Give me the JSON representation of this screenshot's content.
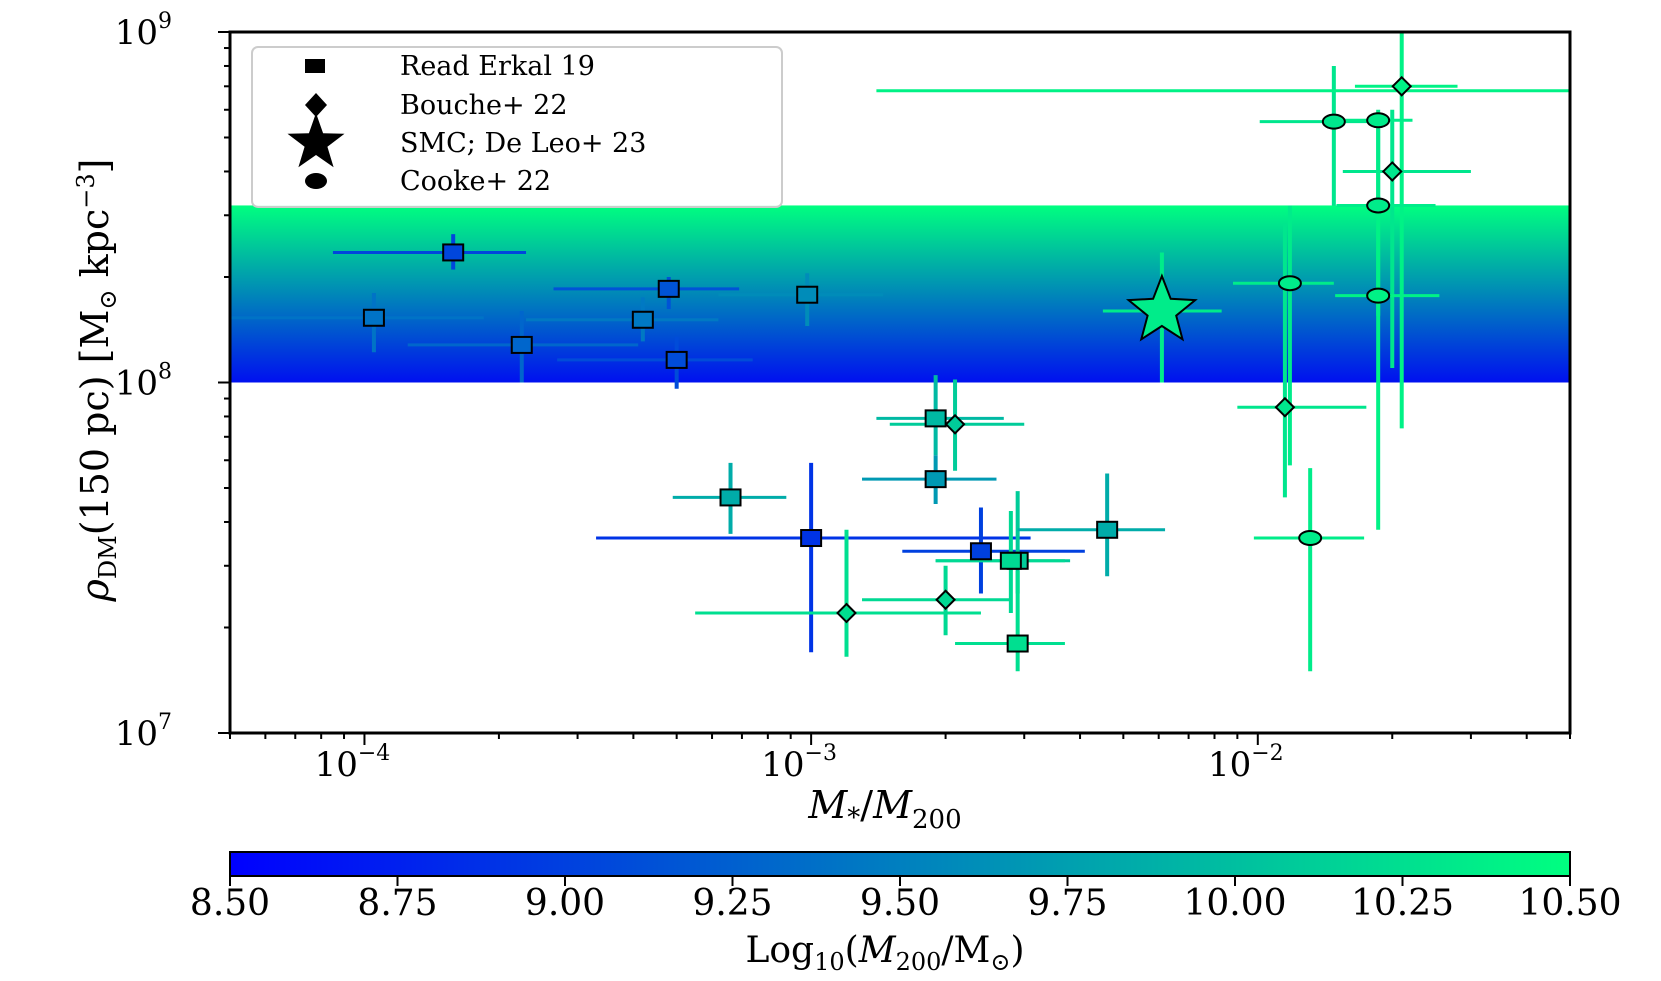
{
  "chart_data": {
    "type": "scatter",
    "title": "",
    "xlabel": "M*/M200",
    "ylabel": "ρDM(150 pc) [M⊙ kpc⁻³]",
    "xscale": "log",
    "yscale": "log",
    "xlim": [
      5e-05,
      0.05
    ],
    "ylim": [
      10000000,
      1000000000
    ],
    "x_ticks": [
      {
        "base": "10",
        "exp": "−4",
        "value": 0.0001
      },
      {
        "base": "10",
        "exp": "−3",
        "value": 0.001
      },
      {
        "base": "10",
        "exp": "−2",
        "value": 0.01
      }
    ],
    "y_ticks": [
      {
        "base": "10",
        "exp": "7",
        "value": 10000000
      },
      {
        "base": "10",
        "exp": "8",
        "value": 100000000
      },
      {
        "base": "10",
        "exp": "9",
        "value": 1000000000
      }
    ],
    "band": {
      "y_low": 100000000,
      "y_high": 320000000,
      "color_bottom": "#0010f0",
      "color_top": "#00ff80"
    },
    "colorbar": {
      "label": "Log10(M200/M⊙)",
      "min": 8.5,
      "max": 10.5,
      "ticks": [
        "8.50",
        "8.75",
        "9.00",
        "9.25",
        "9.50",
        "9.75",
        "10.00",
        "10.25",
        "10.50"
      ],
      "color_low": "#0000ff",
      "color_high": "#00ff80"
    },
    "legend": {
      "position": "top-left",
      "entries": [
        {
          "marker": "square",
          "label": "Read Erkal 19"
        },
        {
          "marker": "diamond",
          "label": "Bouche+ 22"
        },
        {
          "marker": "star",
          "label": "SMC; De Leo+ 23"
        },
        {
          "marker": "circle",
          "label": "Cooke+ 22"
        }
      ]
    },
    "series": [
      {
        "marker": "square",
        "points": [
          {
            "x": 0.000158,
            "y": 235000000,
            "xlo": 8.5e-05,
            "xhi": 0.00023,
            "ylo": 210000000,
            "yhi": 265000000,
            "c": 9.05
          },
          {
            "x": 0.000105,
            "y": 153000000,
            "xlo": 5e-05,
            "xhi": 0.000185,
            "ylo": 122000000,
            "yhi": 180000000,
            "c": 9.4
          },
          {
            "x": 0.000225,
            "y": 128000000,
            "xlo": 0.000125,
            "xhi": 0.00041,
            "ylo": 100000000,
            "yhi": 160000000,
            "c": 9.3
          },
          {
            "x": 0.00048,
            "y": 185000000,
            "xlo": 0.000265,
            "xhi": 0.00069,
            "ylo": 162000000,
            "yhi": 200000000,
            "c": 9.15
          },
          {
            "x": 0.00042,
            "y": 151000000,
            "xlo": 0.00023,
            "xhi": 0.00062,
            "ylo": 131000000,
            "yhi": 175000000,
            "c": 9.45
          },
          {
            "x": 0.0005,
            "y": 116000000,
            "xlo": 0.00027,
            "xhi": 0.00074,
            "ylo": 96000000,
            "yhi": 135000000,
            "c": 9.1
          },
          {
            "x": 0.00098,
            "y": 178000000,
            "xlo": 0.00062,
            "xhi": 0.00145,
            "ylo": 145000000,
            "yhi": 205000000,
            "c": 9.6
          },
          {
            "x": 0.00066,
            "y": 47000000,
            "xlo": 0.00049,
            "xhi": 0.00088,
            "ylo": 37000000,
            "yhi": 59000000,
            "c": 9.85
          },
          {
            "x": 0.001,
            "y": 36000000,
            "xlo": 0.00033,
            "xhi": 0.0031,
            "ylo": 17000000,
            "yhi": 59000000,
            "c": 8.9
          },
          {
            "x": 0.0019,
            "y": 79000000,
            "xlo": 0.0014,
            "xhi": 0.0027,
            "ylo": 62000000,
            "yhi": 105000000,
            "c": 9.95
          },
          {
            "x": 0.0019,
            "y": 53000000,
            "xlo": 0.0013,
            "xhi": 0.0026,
            "ylo": 45000000,
            "yhi": 62000000,
            "c": 9.7
          },
          {
            "x": 0.0024,
            "y": 33000000,
            "xlo": 0.0016,
            "xhi": 0.0041,
            "ylo": 25000000,
            "yhi": 44000000,
            "c": 9.0
          },
          {
            "x": 0.0029,
            "y": 31000000,
            "xlo": 0.0019,
            "xhi": 0.0038,
            "ylo": 25000000,
            "yhi": 49000000,
            "c": 10.1
          },
          {
            "x": 0.0028,
            "y": 31000000,
            "xlo": 0.0019,
            "xhi": 0.0037,
            "ylo": 22000000,
            "yhi": 43000000,
            "c": 10.2
          },
          {
            "x": 0.0029,
            "y": 18000000,
            "xlo": 0.0021,
            "xhi": 0.0037,
            "ylo": 15000000,
            "yhi": 29000000,
            "c": 10.25
          },
          {
            "x": 0.0046,
            "y": 38000000,
            "xlo": 0.0029,
            "xhi": 0.0062,
            "ylo": 28000000,
            "yhi": 55000000,
            "c": 9.85
          }
        ]
      },
      {
        "marker": "diamond",
        "points": [
          {
            "x": 0.0021,
            "y": 76000000,
            "xlo": 0.0015,
            "xhi": 0.003,
            "ylo": 56000000,
            "yhi": 102000000,
            "c": 10.1
          },
          {
            "x": 0.0012,
            "y": 22000000,
            "xlo": 0.00055,
            "xhi": 0.0024,
            "ylo": 16500000,
            "yhi": 38000000,
            "c": 10.25
          },
          {
            "x": 0.002,
            "y": 24000000,
            "xlo": 0.0013,
            "xhi": 0.0028,
            "ylo": 19000000,
            "yhi": 30000000,
            "c": 10.2
          },
          {
            "x": 0.0115,
            "y": 85000000,
            "xlo": 0.009,
            "xhi": 0.0175,
            "ylo": 47000000,
            "yhi": 285000000,
            "c": 10.3
          },
          {
            "x": 0.021,
            "y": 700000000,
            "xlo": 0.0165,
            "xhi": 0.028,
            "ylo": 74000000,
            "yhi": 1000000000,
            "c": 10.4
          },
          {
            "x": 0.02,
            "y": 400000000,
            "xlo": 0.0155,
            "xhi": 0.03,
            "ylo": 110000000,
            "yhi": 600000000,
            "c": 10.3
          }
        ]
      },
      {
        "marker": "star",
        "points": [
          {
            "x": 0.0061,
            "y": 160000000,
            "xlo": 0.0045,
            "xhi": 0.0083,
            "ylo": 100000000,
            "yhi": 235000000,
            "c": 10.35
          }
        ]
      },
      {
        "marker": "circle",
        "points": [
          {
            "x": 0.0148,
            "y": 555000000,
            "xlo": 0.0101,
            "xhi": 0.0192,
            "ylo": 320000000,
            "yhi": 800000000,
            "c": 10.3
          },
          {
            "x": 0.0118,
            "y": 192000000,
            "xlo": 0.0088,
            "xhi": 0.0148,
            "ylo": 58000000,
            "yhi": 320000000,
            "c": 10.35
          },
          {
            "x": 0.0186,
            "y": 320000000,
            "xlo": 0.015,
            "xhi": 0.025,
            "ylo": 155000000,
            "yhi": 560000000,
            "c": 10.35
          },
          {
            "x": 0.0186,
            "y": 177000000,
            "xlo": 0.0149,
            "xhi": 0.0255,
            "ylo": 38000000,
            "yhi": 340000000,
            "c": 10.4
          },
          {
            "x": 0.0131,
            "y": 36000000,
            "xlo": 0.0098,
            "xhi": 0.0173,
            "ylo": 15000000,
            "yhi": 57000000,
            "c": 10.35
          },
          {
            "x": 0.0186,
            "y": 560000000,
            "xlo": 0.0149,
            "xhi": 0.0222,
            "ylo": 320000000,
            "yhi": 600000000,
            "c": 10.35
          }
        ]
      },
      {
        "marker": "none",
        "points": [
          {
            "x": 0.02,
            "y": 680000000,
            "xlo": 0.0014,
            "xhi": 0.05,
            "ylo": 680000000,
            "yhi": 680000000,
            "c": 10.4
          }
        ]
      }
    ]
  }
}
